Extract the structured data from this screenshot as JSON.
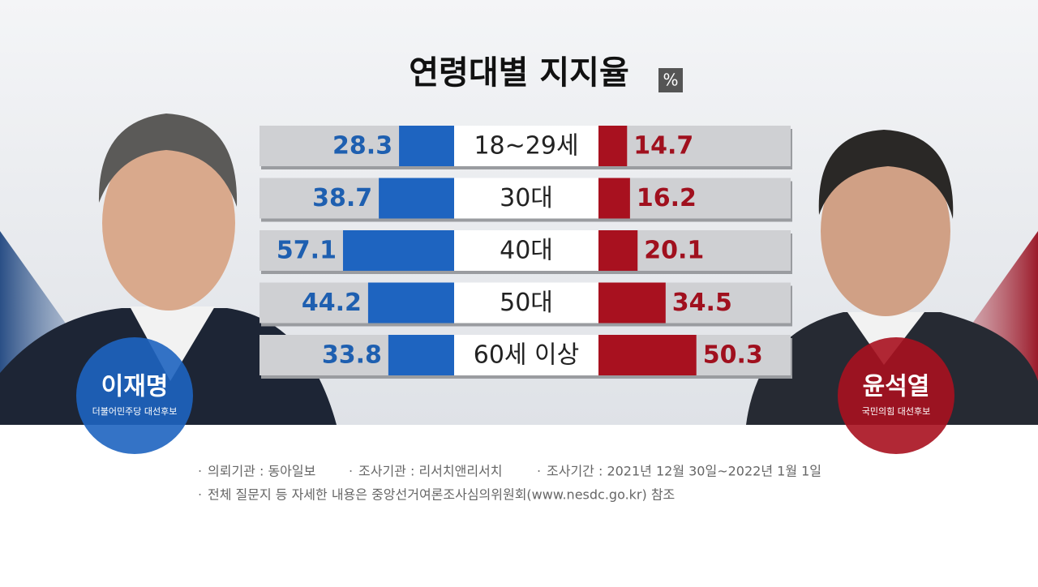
{
  "chart_data": {
    "type": "diverging_bar",
    "title": "연령대별 지지율",
    "unit": "%",
    "categories": [
      "18~29세",
      "30대",
      "40대",
      "50대",
      "60세 이상"
    ],
    "series": [
      {
        "name": "이재명",
        "description": "더불어민주당 대선후보",
        "color": "#1e64c0",
        "text_color": "#1e5fb0",
        "values": [
          28.3,
          38.7,
          57.1,
          44.2,
          33.8
        ]
      },
      {
        "name": "윤석열",
        "description": "국민의힘 대선후보",
        "color": "#a8111f",
        "text_color": "#a0101e",
        "values": [
          14.7,
          16.2,
          20.1,
          34.5,
          50.3
        ]
      }
    ],
    "notes": [
      "의뢰기관 : 동아일보",
      "조사기관 : 리서치앤리서치",
      "조사기간 : 2021년 12월 30일~2022년 1월 1일",
      "전체 질문지 등 자세한 내용은 중앙선거여론조사심의위원회(www.nesdc.go.kr) 참조"
    ]
  }
}
